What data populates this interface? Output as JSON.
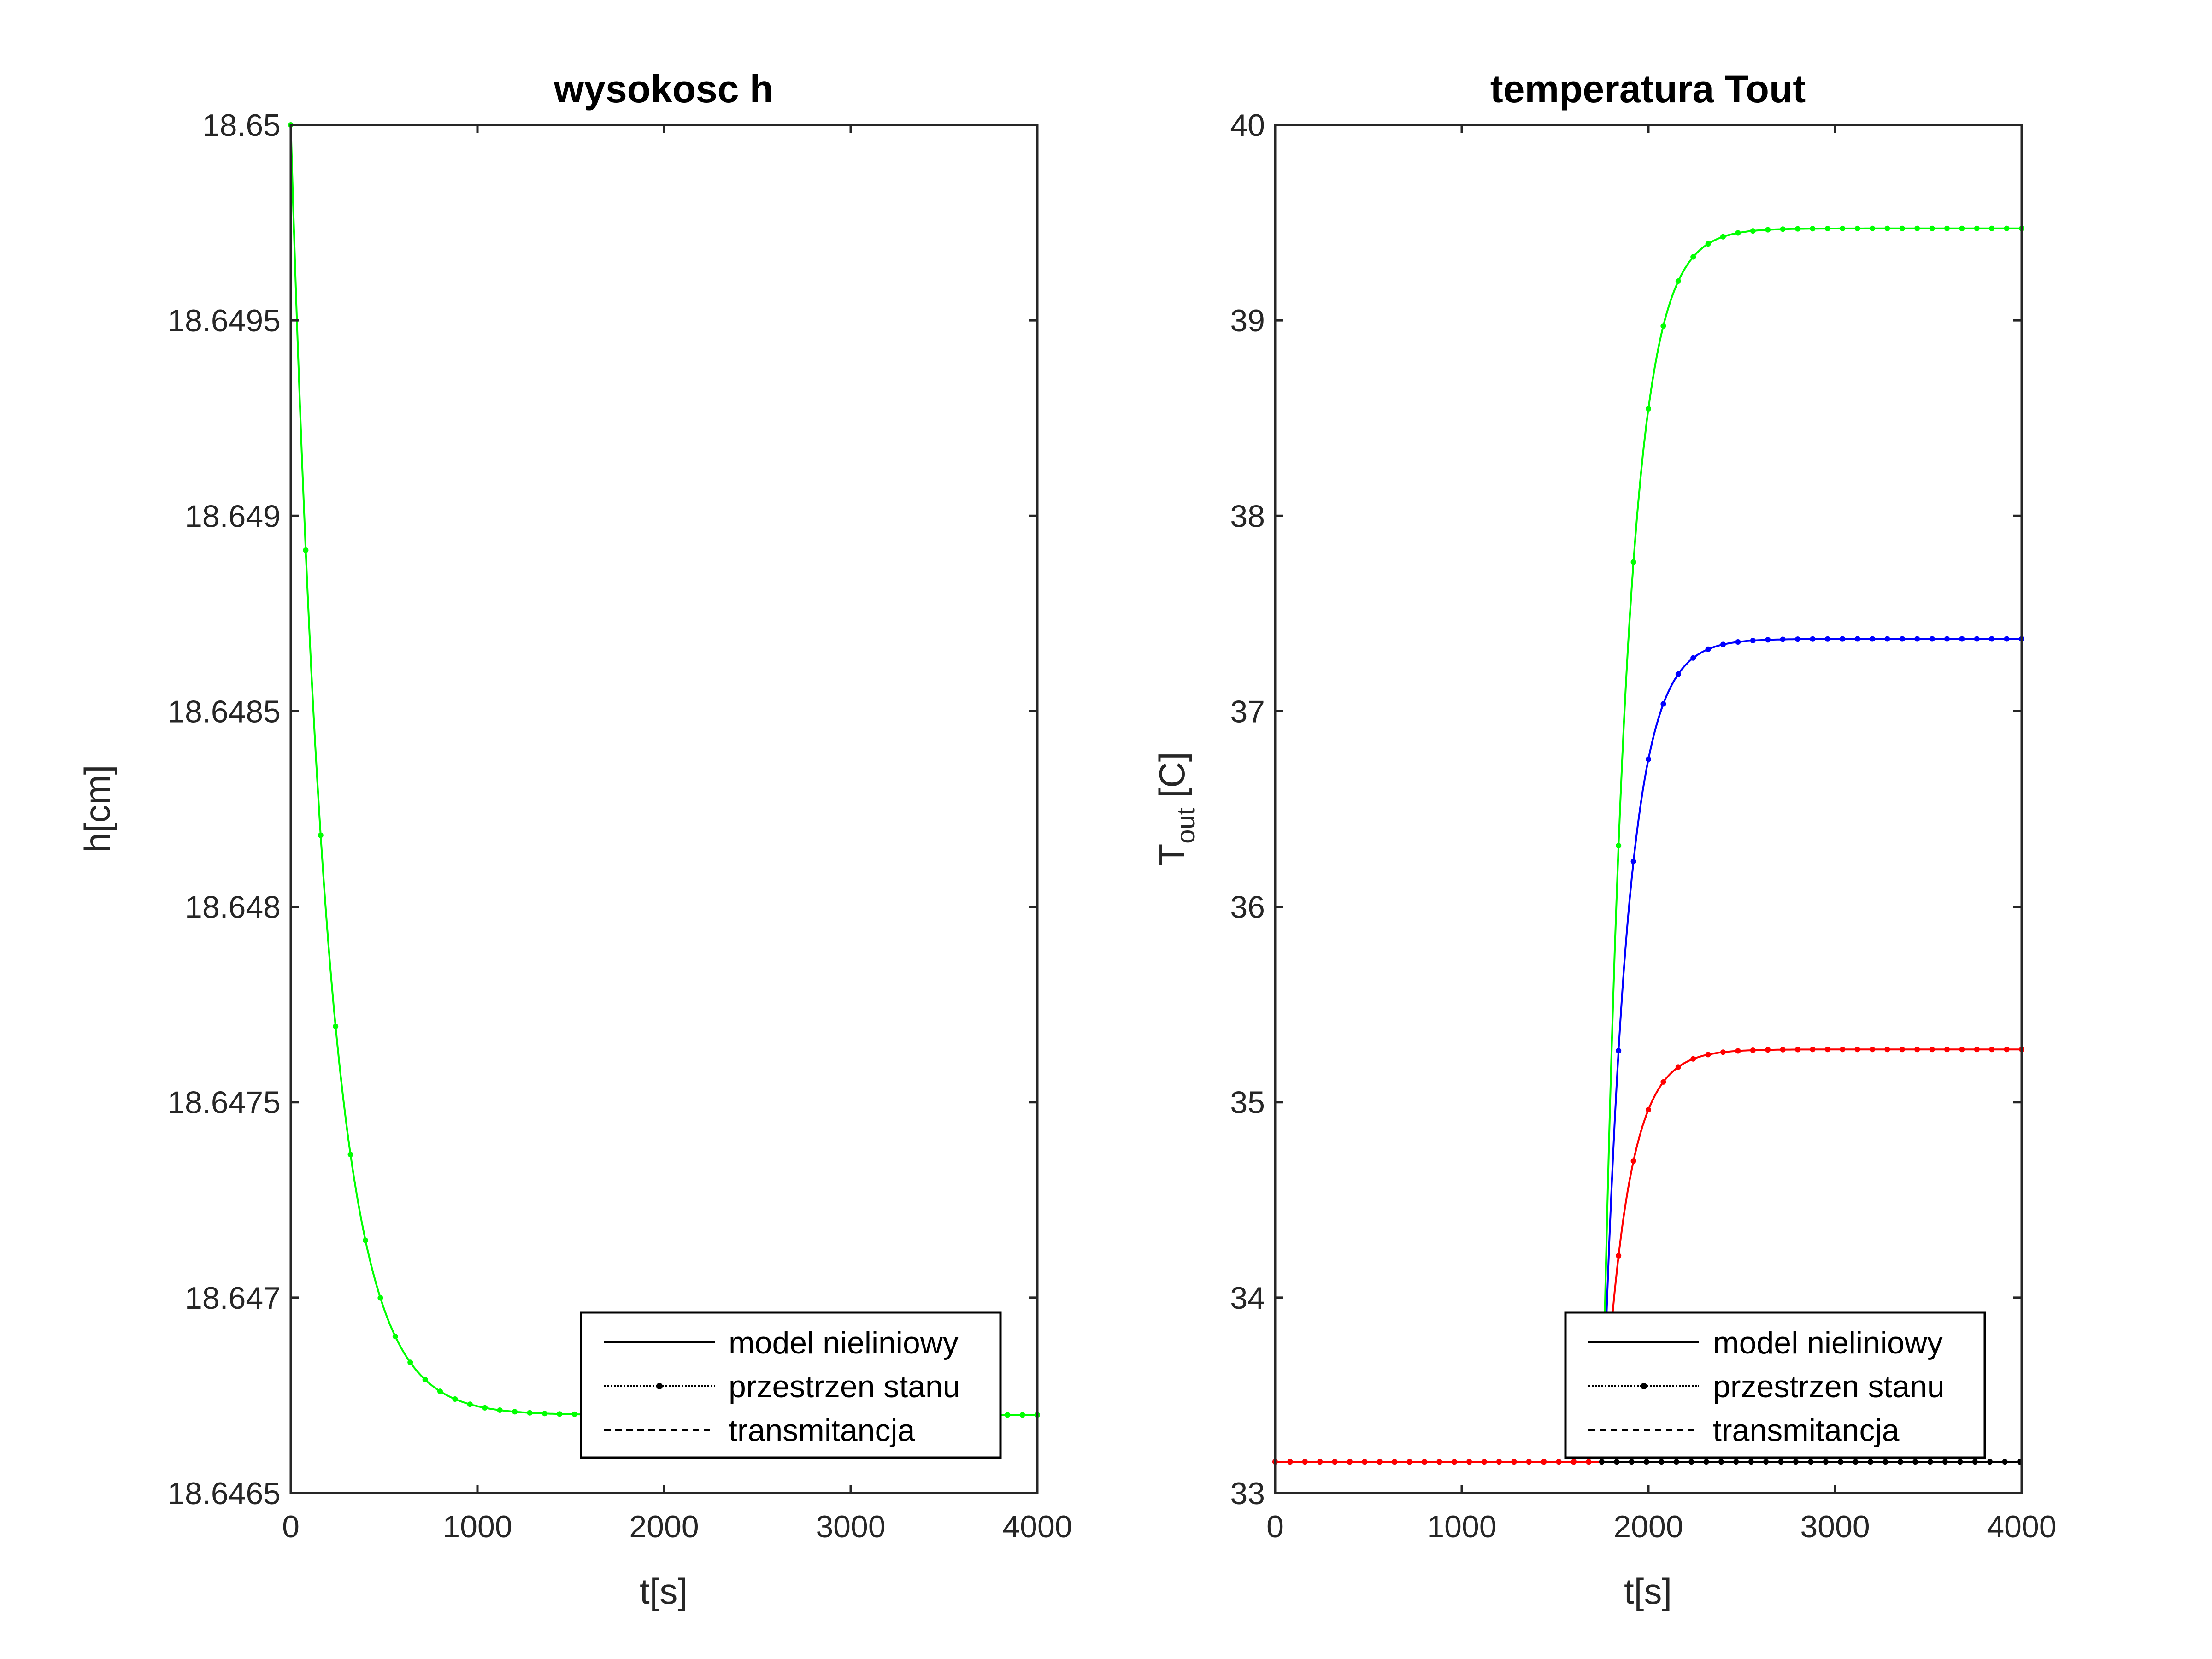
{
  "chart_data": [
    {
      "type": "line",
      "title": "wysokosc h",
      "xlabel": "t[s]",
      "ylabel": "h[cm]",
      "xlim": [
        0,
        4000
      ],
      "ylim": [
        18.6465,
        18.65
      ],
      "xticks": [
        0,
        1000,
        2000,
        3000,
        4000
      ],
      "xtick_labels": [
        "0",
        "1000",
        "2000",
        "3000",
        "4000"
      ],
      "yticks": [
        18.6465,
        18.647,
        18.6475,
        18.648,
        18.6485,
        18.649,
        18.6495,
        18.65
      ],
      "ytick_labels": [
        "18.6465",
        "18.647",
        "18.6475",
        "18.648",
        "18.6485",
        "18.649",
        "18.6495",
        "18.65"
      ],
      "grid": false,
      "legend": {
        "location": "bottom-right",
        "entries": [
          {
            "label": "model nieliniowy",
            "style": "solid"
          },
          {
            "label": "przestrzen stanu",
            "style": "dots"
          },
          {
            "label": "transmitancja",
            "style": "dashed"
          }
        ]
      },
      "series": [
        {
          "color": "#00ff00",
          "marker": "dot",
          "kind": "exp",
          "y0": 18.65,
          "yinf": 18.6467,
          "t0": 0,
          "tau": 200
        },
        {
          "color": "#000000",
          "kind": "const",
          "value": 18.65,
          "style": "dashed"
        }
      ]
    },
    {
      "type": "line",
      "title": "temperatura Tout",
      "xlabel": "t[s]",
      "ylabel": "T",
      "ylabel_sub": "out",
      "ylabel_suffix": " [C]",
      "xlim": [
        0,
        4000
      ],
      "ylim": [
        33,
        40
      ],
      "xticks": [
        0,
        1000,
        2000,
        3000,
        4000
      ],
      "xtick_labels": [
        "0",
        "1000",
        "2000",
        "3000",
        "4000"
      ],
      "yticks": [
        33,
        34,
        35,
        36,
        37,
        38,
        39,
        40
      ],
      "ytick_labels": [
        "33",
        "34",
        "35",
        "36",
        "37",
        "38",
        "39",
        "40"
      ],
      "grid": false,
      "legend": {
        "location": "bottom-right",
        "entries": [
          {
            "label": "model nieliniowy",
            "style": "solid"
          },
          {
            "label": "przestrzen stanu",
            "style": "dots"
          },
          {
            "label": "transmitancja",
            "style": "dashed"
          }
        ]
      },
      "series": [
        {
          "color": "#00ff00",
          "marker": "dot",
          "kind": "step",
          "y0": 33.16,
          "yinf": 39.47,
          "t0": 1750,
          "tau": 130
        },
        {
          "color": "#0000ff",
          "marker": "dot",
          "kind": "step",
          "y0": 33.16,
          "yinf": 37.37,
          "t0": 1750,
          "tau": 130
        },
        {
          "color": "#ff0000",
          "marker": "dot",
          "kind": "step",
          "y0": 33.16,
          "yinf": 35.27,
          "t0": 1750,
          "tau": 130
        },
        {
          "color": "#000000",
          "marker": "dot",
          "kind": "const",
          "value": 33.16,
          "t0": 1750
        }
      ]
    }
  ]
}
